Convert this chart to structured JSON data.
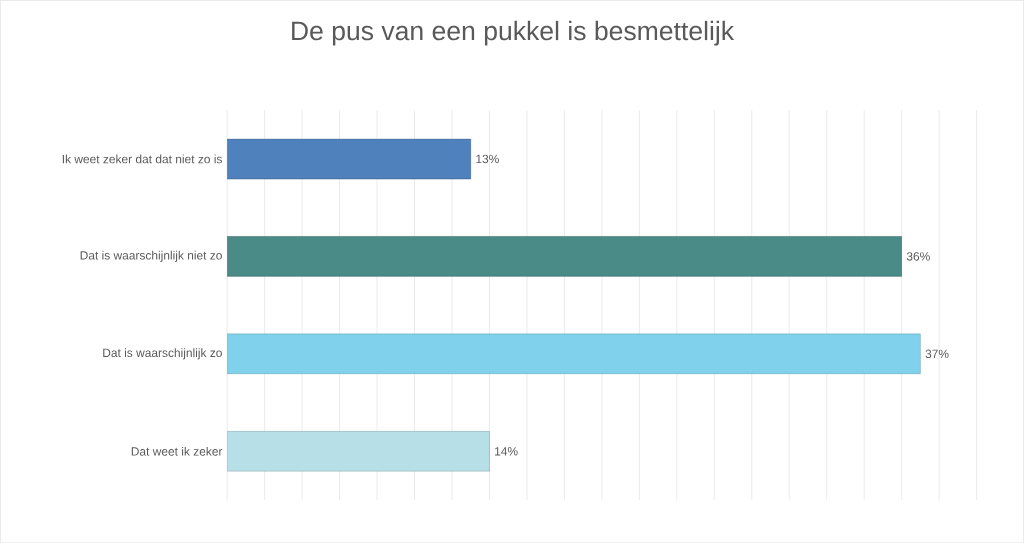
{
  "chart_data": {
    "type": "bar",
    "orientation": "horizontal",
    "title": "De pus van een pukkel is besmettelijk",
    "categories": [
      "Ik weet zeker dat dat niet zo is",
      "Dat is waarschijnlijk niet zo",
      "Dat is waarschijnlijk zo",
      "Dat weet ik zeker"
    ],
    "values": [
      13,
      36,
      37,
      14
    ],
    "colors": [
      "#4f81bd",
      "#4a8a87",
      "#80d2ec",
      "#b7dfe8"
    ],
    "value_labels": [
      "13%",
      "36%",
      "37%",
      "14%"
    ],
    "grid": "x",
    "tick_labels": "y"
  }
}
